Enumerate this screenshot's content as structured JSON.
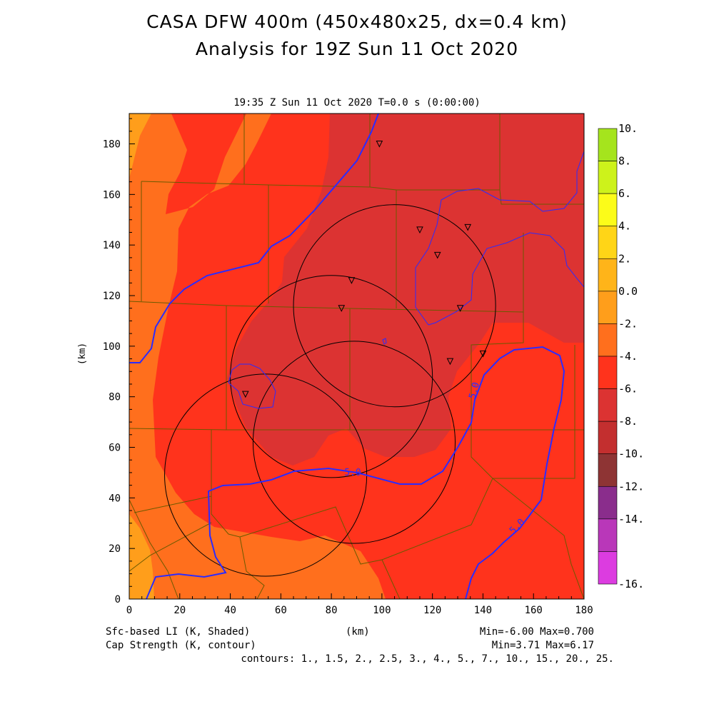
{
  "title": "CASA DFW 400m (450x480x25, dx=0.4 km)",
  "subtitle": "Analysis for 19Z Sun 11 Oct 2020",
  "plot_header": "19:35 Z Sun 11 Oct 2020    T=0.0 s (0:00:00)",
  "footer": {
    "left1": "Sfc-based LI (K, Shaded)",
    "left2": "Cap Strength (K, contour)",
    "xunit": "(km)",
    "right1": "Min=-6.00 Max=0.700",
    "right2": "Min=3.71 Max=6.17",
    "contours": "contours: 1., 1.5, 2., 2.5, 3., 4., 5., 7., 10., 15., 20., 25."
  },
  "colors": {
    "neg6_neg4": "#dc3332",
    "neg4_neg2": "#ff331c",
    "neg2_0": "#ff6f1d",
    "zero_2": "#ff9e1b",
    "contour": "#2b2bff",
    "border": "#6b5a00"
  },
  "chart_data": {
    "type": "heatmap",
    "xlabel": "(km)",
    "ylabel": "(km)",
    "xlim": [
      0,
      180
    ],
    "ylim": [
      0,
      192
    ],
    "xticks": [
      "0",
      "20",
      "40",
      "60",
      "80",
      "100",
      "120",
      "140",
      "160",
      "180"
    ],
    "yticks": [
      "0",
      "20",
      "40",
      "60",
      "80",
      "100",
      "120",
      "140",
      "160",
      "180"
    ],
    "colorbar": {
      "labels": [
        "10.",
        "8.",
        "6.",
        "4.",
        "2.",
        "0.0",
        "-2.",
        "-4.",
        "-6.",
        "-8.",
        "-10.",
        "-12.",
        "-14.",
        "-16."
      ],
      "colors": [
        "#a5e41d",
        "#cdf21b",
        "#fcfc19",
        "#ffd517",
        "#ffb419",
        "#ff9e1b",
        "#ff6f1d",
        "#ff331c",
        "#dc3332",
        "#c32f2f",
        "#8e3434",
        "#8a2d8c",
        "#b937b9",
        "#dc3ce0"
      ]
    },
    "contour_labels": [
      "5.0",
      "5.0",
      "5.0"
    ],
    "radar_sites_km": [
      {
        "x": 54,
        "y": 49
      },
      {
        "x": 80,
        "y": 88
      },
      {
        "x": 89,
        "y": 62
      },
      {
        "x": 105,
        "y": 116
      }
    ],
    "radar_range_km": 40,
    "station_markers_km": [
      {
        "x": 99,
        "y": 180
      },
      {
        "x": 115,
        "y": 146
      },
      {
        "x": 134,
        "y": 147
      },
      {
        "x": 122,
        "y": 136
      },
      {
        "x": 88,
        "y": 126
      },
      {
        "x": 84,
        "y": 115
      },
      {
        "x": 131,
        "y": 115
      },
      {
        "x": 127,
        "y": 94
      },
      {
        "x": 140,
        "y": 97
      },
      {
        "x": 46,
        "y": 81
      }
    ],
    "field_min": -6.0,
    "field_max": 0.7,
    "cap_min": 3.71,
    "cap_max": 6.17
  }
}
